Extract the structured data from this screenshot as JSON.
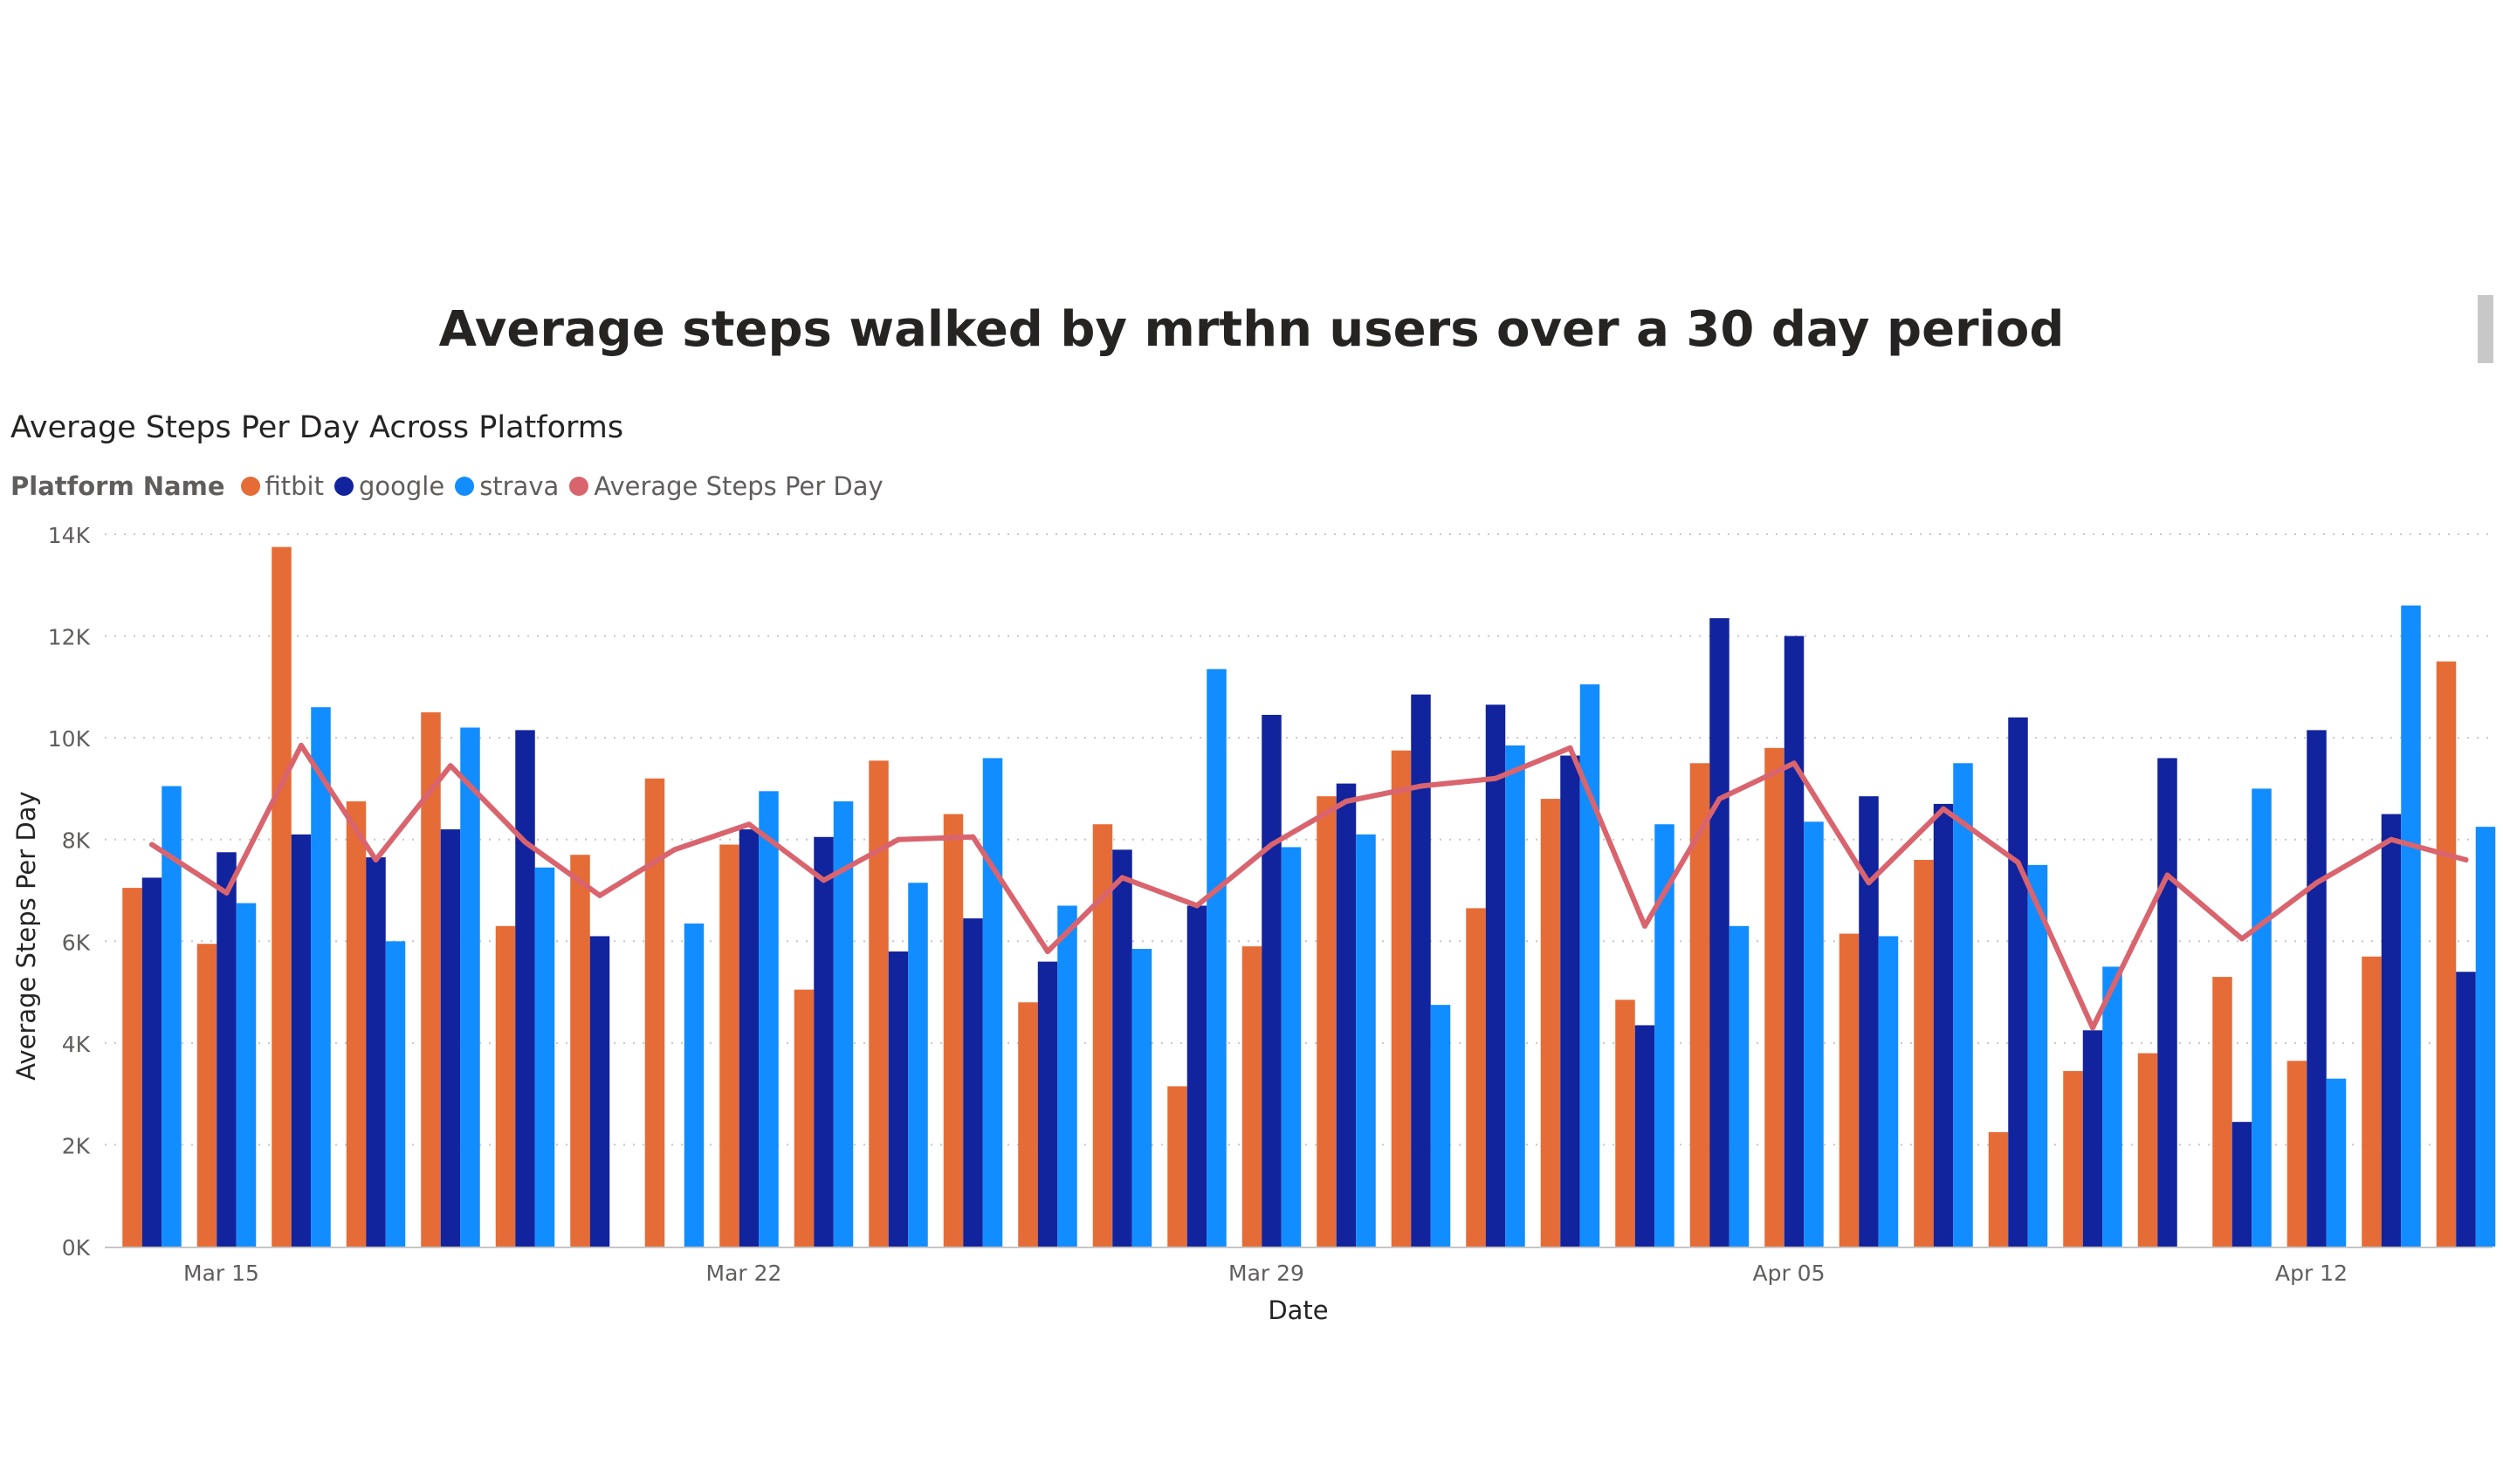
{
  "page": {
    "title": "Average steps walked by mrthn users over a 30 day period"
  },
  "visual": {
    "title": "Average Steps Per Day Across Platforms"
  },
  "legend": {
    "title": "Platform Name",
    "items": [
      {
        "label": "fitbit",
        "color": "#E66C37"
      },
      {
        "label": "google",
        "color": "#12239E"
      },
      {
        "label": "strava",
        "color": "#118DFF"
      },
      {
        "label": "Average Steps Per Day",
        "color": "#D9646E"
      }
    ]
  },
  "chart_data": {
    "type": "bar",
    "subtype": "clustered-column-with-line",
    "xlabel": "Date",
    "ylabel": "Average Steps Per Day",
    "ylim": [
      0,
      14000
    ],
    "yticks": [
      0,
      2000,
      4000,
      6000,
      8000,
      10000,
      12000,
      14000
    ],
    "ytick_labels": [
      "0K",
      "2K",
      "4K",
      "6K",
      "8K",
      "10K",
      "12K",
      "14K"
    ],
    "xticks": [
      {
        "label": "Mar 15",
        "date": "Mar 15"
      },
      {
        "label": "Mar 22",
        "date": "Mar 22"
      },
      {
        "label": "Mar 29",
        "date": "Mar 29"
      },
      {
        "label": "Apr 05",
        "date": "Apr 05"
      },
      {
        "label": "Apr 12",
        "date": "Apr 12"
      }
    ],
    "grid": true,
    "categories": [
      "Mar 14",
      "Mar 15",
      "Mar 16",
      "Mar 17",
      "Mar 18",
      "Mar 19",
      "Mar 20",
      "Mar 21",
      "Mar 22",
      "Mar 23",
      "Mar 24",
      "Mar 25",
      "Mar 26",
      "Mar 27",
      "Mar 28",
      "Mar 29",
      "Mar 30",
      "Mar 31",
      "Apr 01",
      "Apr 02",
      "Apr 03",
      "Apr 04",
      "Apr 05",
      "Apr 06",
      "Apr 07",
      "Apr 08",
      "Apr 09",
      "Apr 10",
      "Apr 11",
      "Apr 12",
      "Apr 13",
      "Apr 14"
    ],
    "series": [
      {
        "name": "fitbit",
        "type": "bar",
        "color": "#E66C37",
        "values": [
          7050,
          5950,
          13750,
          8750,
          10500,
          6300,
          7700,
          9200,
          7900,
          5050,
          9550,
          8500,
          4800,
          8300,
          3150,
          5900,
          8850,
          9750,
          6650,
          8800,
          4850,
          9500,
          9800,
          6150,
          7600,
          2250,
          3450,
          3800,
          5300,
          3650,
          5700,
          11500
        ]
      },
      {
        "name": "google",
        "type": "bar",
        "color": "#12239E",
        "values": [
          7250,
          7750,
          8100,
          7650,
          8200,
          10150,
          6100,
          null,
          8200,
          8050,
          5800,
          6450,
          5600,
          7800,
          6700,
          10450,
          9100,
          10850,
          10650,
          9650,
          4350,
          12350,
          12000,
          8850,
          8700,
          10400,
          4250,
          9600,
          2450,
          10150,
          8500,
          5400
        ]
      },
      {
        "name": "strava",
        "type": "bar",
        "color": "#118DFF",
        "values": [
          9050,
          6750,
          10600,
          6000,
          10200,
          7450,
          null,
          6350,
          8950,
          8750,
          7150,
          9600,
          6700,
          5850,
          11350,
          7850,
          8100,
          4750,
          9850,
          11050,
          8300,
          6300,
          8350,
          6100,
          9500,
          7500,
          5500,
          null,
          9000,
          3300,
          12600,
          8250
        ]
      },
      {
        "name": "Average Steps Per Day",
        "type": "line",
        "color": "#D9646E",
        "values": [
          7900,
          6950,
          9850,
          7600,
          9450,
          7950,
          6900,
          7800,
          8300,
          7200,
          8000,
          8050,
          5800,
          7250,
          6700,
          7900,
          8750,
          9050,
          9200,
          9800,
          6300,
          8800,
          9500,
          7150,
          8600,
          7550,
          4300,
          7300,
          6050,
          7150,
          8000,
          7600
        ]
      }
    ]
  }
}
